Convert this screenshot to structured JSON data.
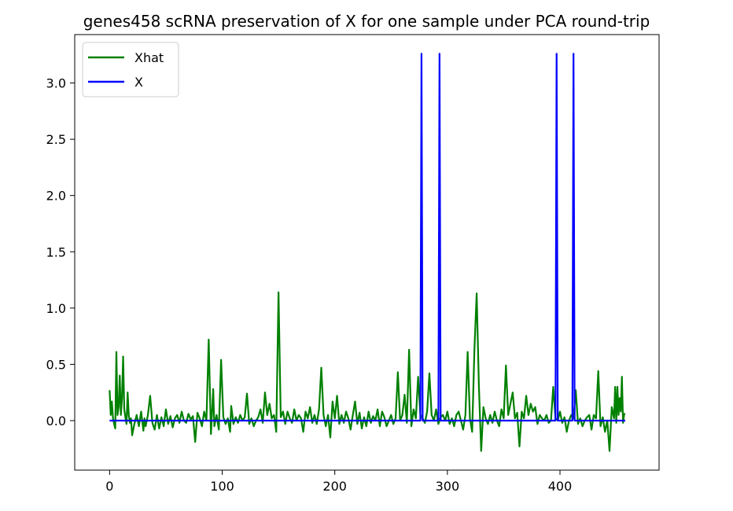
{
  "chart_data": {
    "type": "line",
    "title": "genes458 scRNA preservation of X for one sample under PCA round-trip",
    "xlabel": "",
    "ylabel": "",
    "xlim": [
      -31,
      488
    ],
    "ylim": [
      -0.44,
      3.43
    ],
    "xticks": [
      0,
      100,
      200,
      300,
      400
    ],
    "xtick_labels": [
      "0",
      "100",
      "200",
      "300",
      "400"
    ],
    "yticks": [
      0.0,
      0.5,
      1.0,
      1.5,
      2.0,
      2.5,
      3.0
    ],
    "ytick_labels": [
      "0.0",
      "0.5",
      "1.0",
      "1.5",
      "2.0",
      "2.5",
      "3.0"
    ],
    "grid": false,
    "legend_position": "upper-left",
    "series": [
      {
        "name": "Xhat",
        "color": "#008000",
        "points": [
          [
            0,
            0.27
          ],
          [
            1,
            0.05
          ],
          [
            2,
            0.17
          ],
          [
            3,
            0.02
          ],
          [
            4,
            -0.03
          ],
          [
            5,
            -0.07
          ],
          [
            6,
            0.61
          ],
          [
            7,
            0.05
          ],
          [
            8,
            0.12
          ],
          [
            9,
            0.4
          ],
          [
            10,
            0.05
          ],
          [
            11,
            0.2
          ],
          [
            12,
            0.57
          ],
          [
            13,
            0.1
          ],
          [
            14,
            0.03
          ],
          [
            15,
            -0.03
          ],
          [
            16,
            0.25
          ],
          [
            17,
            0.05
          ],
          [
            18,
            -0.02
          ],
          [
            19,
            0.02
          ],
          [
            20,
            -0.13
          ],
          [
            22,
            -0.03
          ],
          [
            24,
            0.05
          ],
          [
            26,
            -0.05
          ],
          [
            28,
            0.08
          ],
          [
            30,
            -0.09
          ],
          [
            31,
            0.02
          ],
          [
            32,
            -0.05
          ],
          [
            34,
            0.05
          ],
          [
            36,
            0.22
          ],
          [
            38,
            -0.02
          ],
          [
            40,
            -0.08
          ],
          [
            42,
            0.05
          ],
          [
            44,
            -0.07
          ],
          [
            46,
            0.03
          ],
          [
            48,
            -0.05
          ],
          [
            50,
            0.1
          ],
          [
            52,
            -0.03
          ],
          [
            54,
            0.04
          ],
          [
            56,
            -0.06
          ],
          [
            58,
            0.02
          ],
          [
            60,
            0.05
          ],
          [
            62,
            -0.02
          ],
          [
            64,
            0.08
          ],
          [
            66,
            0.0
          ],
          [
            68,
            -0.02
          ],
          [
            70,
            0.06
          ],
          [
            72,
            0.01
          ],
          [
            74,
            0.04
          ],
          [
            76,
            -0.19
          ],
          [
            78,
            0.07
          ],
          [
            80,
            0.02
          ],
          [
            82,
            -0.05
          ],
          [
            84,
            0.08
          ],
          [
            86,
            0.0
          ],
          [
            88,
            0.72
          ],
          [
            90,
            -0.12
          ],
          [
            92,
            0.28
          ],
          [
            93,
            -0.05
          ],
          [
            95,
            0.05
          ],
          [
            97,
            -0.08
          ],
          [
            99,
            0.54
          ],
          [
            101,
            0.03
          ],
          [
            103,
            -0.03
          ],
          [
            105,
            0.02
          ],
          [
            107,
            -0.1
          ],
          [
            108,
            0.13
          ],
          [
            110,
            -0.03
          ],
          [
            112,
            0.03
          ],
          [
            114,
            -0.02
          ],
          [
            116,
            0.05
          ],
          [
            118,
            0.0
          ],
          [
            120,
            0.03
          ],
          [
            122,
            0.24
          ],
          [
            124,
            -0.03
          ],
          [
            126,
            0.02
          ],
          [
            128,
            -0.05
          ],
          [
            130,
            0.0
          ],
          [
            132,
            0.03
          ],
          [
            134,
            0.1
          ],
          [
            136,
            -0.02
          ],
          [
            138,
            0.25
          ],
          [
            140,
            0.05
          ],
          [
            142,
            0.15
          ],
          [
            144,
            0.02
          ],
          [
            146,
            0.05
          ],
          [
            148,
            -0.1
          ],
          [
            150,
            1.14
          ],
          [
            152,
            0.03
          ],
          [
            154,
            0.08
          ],
          [
            156,
            -0.03
          ],
          [
            158,
            0.08
          ],
          [
            160,
            0.02
          ],
          [
            162,
            -0.02
          ],
          [
            164,
            0.1
          ],
          [
            166,
            0.0
          ],
          [
            168,
            0.05
          ],
          [
            170,
            0.02
          ],
          [
            172,
            -0.1
          ],
          [
            174,
            0.08
          ],
          [
            176,
            0.02
          ],
          [
            178,
            0.12
          ],
          [
            180,
            -0.02
          ],
          [
            182,
            0.05
          ],
          [
            184,
            -0.03
          ],
          [
            186,
            0.1
          ],
          [
            188,
            0.47
          ],
          [
            190,
            0.05
          ],
          [
            192,
            -0.05
          ],
          [
            194,
            0.05
          ],
          [
            196,
            -0.15
          ],
          [
            198,
            0.17
          ],
          [
            200,
            0.02
          ],
          [
            202,
            0.22
          ],
          [
            204,
            -0.03
          ],
          [
            206,
            0.05
          ],
          [
            208,
            -0.02
          ],
          [
            210,
            0.08
          ],
          [
            212,
            0.02
          ],
          [
            214,
            -0.08
          ],
          [
            216,
            0.05
          ],
          [
            218,
            0.17
          ],
          [
            220,
            -0.03
          ],
          [
            222,
            0.07
          ],
          [
            224,
            -0.07
          ],
          [
            226,
            0.03
          ],
          [
            228,
            -0.05
          ],
          [
            230,
            0.08
          ],
          [
            232,
            -0.02
          ],
          [
            234,
            0.04
          ],
          [
            236,
            0.0
          ],
          [
            238,
            0.1
          ],
          [
            240,
            -0.05
          ],
          [
            242,
            0.08
          ],
          [
            244,
            0.03
          ],
          [
            246,
            -0.05
          ],
          [
            248,
            0.0
          ],
          [
            250,
            0.05
          ],
          [
            252,
            -0.03
          ],
          [
            254,
            0.02
          ],
          [
            256,
            0.43
          ],
          [
            258,
            0.0
          ],
          [
            260,
            0.05
          ],
          [
            262,
            0.23
          ],
          [
            264,
            -0.02
          ],
          [
            266,
            0.63
          ],
          [
            268,
            -0.05
          ],
          [
            270,
            0.1
          ],
          [
            272,
            0.02
          ],
          [
            274,
            0.39
          ],
          [
            276,
            0.05
          ],
          [
            278,
            0.02
          ],
          [
            280,
            -0.02
          ],
          [
            282,
            0.08
          ],
          [
            284,
            0.42
          ],
          [
            286,
            0.05
          ],
          [
            288,
            0.0
          ],
          [
            290,
            0.1
          ],
          [
            292,
            -0.03
          ],
          [
            294,
            0.03
          ],
          [
            296,
            0.05
          ],
          [
            298,
            0.0
          ],
          [
            300,
            0.08
          ],
          [
            302,
            -0.03
          ],
          [
            304,
            0.02
          ],
          [
            306,
            -0.05
          ],
          [
            308,
            0.05
          ],
          [
            310,
            0.08
          ],
          [
            312,
            0.0
          ],
          [
            314,
            -0.08
          ],
          [
            316,
            0.05
          ],
          [
            318,
            0.61
          ],
          [
            320,
            0.02
          ],
          [
            322,
            -0.1
          ],
          [
            324,
            0.63
          ],
          [
            326,
            1.13
          ],
          [
            328,
            0.3
          ],
          [
            330,
            -0.27
          ],
          [
            332,
            0.12
          ],
          [
            334,
            0.02
          ],
          [
            336,
            -0.03
          ],
          [
            338,
            0.05
          ],
          [
            340,
            -0.02
          ],
          [
            342,
            0.08
          ],
          [
            344,
            0.0
          ],
          [
            346,
            -0.05
          ],
          [
            348,
            0.1
          ],
          [
            350,
            0.02
          ],
          [
            352,
            0.49
          ],
          [
            354,
            0.05
          ],
          [
            356,
            0.15
          ],
          [
            358,
            0.25
          ],
          [
            360,
            0.02
          ],
          [
            362,
            0.07
          ],
          [
            364,
            -0.23
          ],
          [
            366,
            0.08
          ],
          [
            368,
            0.02
          ],
          [
            370,
            0.22
          ],
          [
            372,
            0.05
          ],
          [
            374,
            0.15
          ],
          [
            376,
            0.08
          ],
          [
            378,
            0.12
          ],
          [
            380,
            -0.03
          ],
          [
            382,
            0.05
          ],
          [
            384,
            0.02
          ],
          [
            386,
            0.0
          ],
          [
            388,
            0.05
          ],
          [
            390,
            -0.02
          ],
          [
            392,
            0.0
          ],
          [
            394,
            0.3
          ],
          [
            396,
            0.02
          ],
          [
            398,
            0.0
          ],
          [
            400,
            0.08
          ],
          [
            402,
            -0.02
          ],
          [
            404,
            0.03
          ],
          [
            406,
            -0.1
          ],
          [
            408,
            0.0
          ],
          [
            410,
            0.05
          ],
          [
            412,
            0.02
          ],
          [
            414,
            0.27
          ],
          [
            416,
            -0.03
          ],
          [
            418,
            0.02
          ],
          [
            420,
            -0.05
          ],
          [
            422,
            0.0
          ],
          [
            424,
            0.03
          ],
          [
            426,
            0.05
          ],
          [
            428,
            -0.08
          ],
          [
            430,
            0.05
          ],
          [
            432,
            0.02
          ],
          [
            434,
            0.44
          ],
          [
            436,
            -0.05
          ],
          [
            438,
            0.03
          ],
          [
            440,
            -0.1
          ],
          [
            442,
            0.0
          ],
          [
            444,
            -0.27
          ],
          [
            446,
            0.12
          ],
          [
            448,
            0.02
          ],
          [
            449,
            0.3
          ],
          [
            450,
            -0.02
          ],
          [
            451,
            0.3
          ],
          [
            452,
            0.05
          ],
          [
            453,
            0.2
          ],
          [
            454,
            0.08
          ],
          [
            455,
            0.39
          ],
          [
            456,
            -0.02
          ],
          [
            457,
            0.06
          ],
          [
            458,
            0.06
          ]
        ]
      },
      {
        "name": "X",
        "color": "#0000ff",
        "points": [
          [
            0,
            0.0
          ],
          [
            276,
            0.0
          ],
          [
            277,
            3.26
          ],
          [
            278,
            0.0
          ],
          [
            292,
            0.0
          ],
          [
            293,
            3.26
          ],
          [
            294,
            0.0
          ],
          [
            396,
            0.0
          ],
          [
            397,
            3.26
          ],
          [
            398,
            0.0
          ],
          [
            411,
            0.0
          ],
          [
            412,
            3.26
          ],
          [
            413,
            0.0
          ],
          [
            458,
            0.0
          ]
        ]
      }
    ]
  }
}
